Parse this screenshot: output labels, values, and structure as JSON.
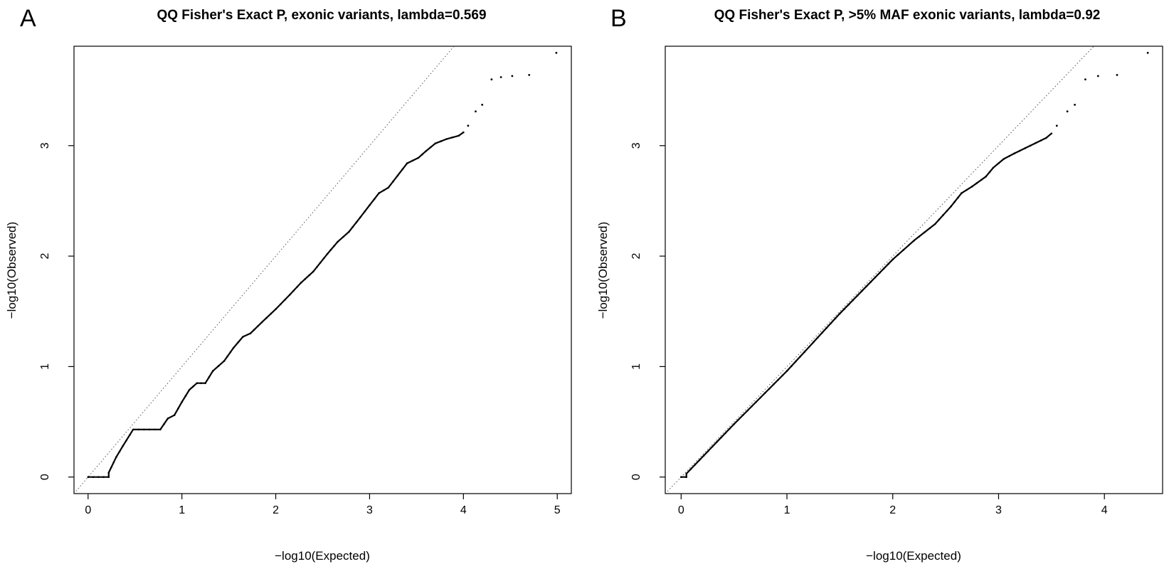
{
  "chart_data": [
    {
      "panel": "A",
      "type": "scatter",
      "title": "QQ Fisher's Exact P, exonic variants, lambda=0.569",
      "xlabel": "−log10(Expected)",
      "ylabel": "−log10(Observed)",
      "xlim": [
        -0.15,
        5.15
      ],
      "ylim": [
        -0.15,
        3.9
      ],
      "xticks": [
        "0",
        "1",
        "2",
        "3",
        "4",
        "5"
      ],
      "yticks": [
        "0",
        "1",
        "2",
        "3"
      ],
      "reference_line": "y = x (dotted)",
      "grid": false,
      "legend": "none",
      "series": [
        {
          "kind": "dense",
          "points": [
            [
              0.0,
              0.0
            ],
            [
              0.22,
              0.0
            ],
            [
              0.22,
              0.04
            ],
            [
              0.3,
              0.18
            ],
            [
              0.37,
              0.28
            ],
            [
              0.48,
              0.43
            ],
            [
              0.77,
              0.43
            ],
            [
              0.85,
              0.53
            ],
            [
              0.92,
              0.56
            ],
            [
              1.0,
              0.68
            ],
            [
              1.08,
              0.79
            ],
            [
              1.16,
              0.85
            ],
            [
              1.25,
              0.85
            ],
            [
              1.33,
              0.96
            ],
            [
              1.45,
              1.05
            ],
            [
              1.55,
              1.17
            ],
            [
              1.65,
              1.27
            ],
            [
              1.73,
              1.3
            ],
            [
              1.85,
              1.4
            ],
            [
              2.0,
              1.52
            ],
            [
              2.15,
              1.65
            ],
            [
              2.27,
              1.76
            ],
            [
              2.4,
              1.86
            ],
            [
              2.55,
              2.02
            ],
            [
              2.66,
              2.13
            ],
            [
              2.78,
              2.22
            ],
            [
              2.9,
              2.35
            ],
            [
              3.0,
              2.46
            ],
            [
              3.1,
              2.57
            ],
            [
              3.2,
              2.62
            ],
            [
              3.3,
              2.73
            ],
            [
              3.4,
              2.84
            ],
            [
              3.52,
              2.89
            ],
            [
              3.6,
              2.95
            ],
            [
              3.7,
              3.02
            ],
            [
              3.82,
              3.06
            ],
            [
              3.95,
              3.09
            ],
            [
              4.0,
              3.12
            ]
          ]
        },
        {
          "kind": "sparse",
          "points": [
            [
              4.05,
              3.18
            ],
            [
              4.13,
              3.31
            ],
            [
              4.2,
              3.37
            ],
            [
              4.3,
              3.6
            ],
            [
              4.4,
              3.62
            ],
            [
              4.52,
              3.63
            ],
            [
              4.7,
              3.64
            ],
            [
              4.99,
              3.84
            ]
          ]
        }
      ]
    },
    {
      "panel": "B",
      "type": "scatter",
      "title": "QQ Fisher's Exact P, >5% MAF exonic variants, lambda=0.92",
      "xlabel": "−log10(Expected)",
      "ylabel": "−log10(Observed)",
      "xlim": [
        -0.15,
        4.55
      ],
      "ylim": [
        -0.15,
        3.9
      ],
      "xticks": [
        "0",
        "1",
        "2",
        "3",
        "4"
      ],
      "yticks": [
        "0",
        "1",
        "2",
        "3"
      ],
      "reference_line": "y = x (dotted)",
      "grid": false,
      "legend": "none",
      "series": [
        {
          "kind": "dense",
          "points": [
            [
              0.0,
              0.0
            ],
            [
              0.05,
              0.0
            ],
            [
              0.05,
              0.03
            ],
            [
              0.5,
              0.48
            ],
            [
              1.0,
              0.96
            ],
            [
              1.5,
              1.48
            ],
            [
              2.0,
              1.97
            ],
            [
              2.2,
              2.14
            ],
            [
              2.4,
              2.29
            ],
            [
              2.55,
              2.45
            ],
            [
              2.65,
              2.57
            ],
            [
              2.75,
              2.63
            ],
            [
              2.88,
              2.72
            ],
            [
              2.95,
              2.8
            ],
            [
              3.05,
              2.88
            ],
            [
              3.15,
              2.93
            ],
            [
              3.3,
              3.0
            ],
            [
              3.45,
              3.07
            ],
            [
              3.5,
              3.11
            ]
          ]
        },
        {
          "kind": "sparse",
          "points": [
            [
              3.55,
              3.18
            ],
            [
              3.65,
              3.31
            ],
            [
              3.72,
              3.37
            ],
            [
              3.82,
              3.6
            ],
            [
              3.94,
              3.63
            ],
            [
              4.12,
              3.64
            ],
            [
              4.41,
              3.84
            ]
          ]
        }
      ]
    }
  ]
}
